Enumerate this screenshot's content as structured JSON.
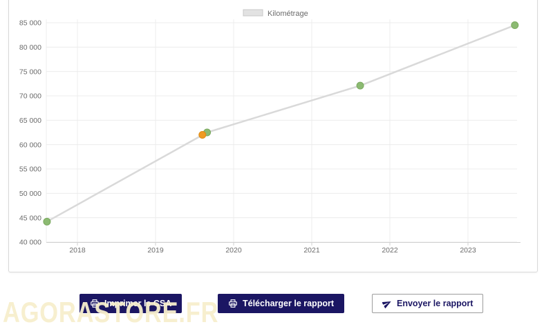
{
  "chart_data": {
    "type": "line",
    "title": "",
    "legend": [
      {
        "label": "Kilométrage",
        "swatch_color": "#e2e2e2",
        "swatch_border": "#c8c8c8"
      }
    ],
    "legend_position": "top-center",
    "grid": true,
    "x_ticks": [
      2018,
      2019,
      2020,
      2021,
      2022,
      2023
    ],
    "xlim": [
      2017.6,
      2023.63
    ],
    "ylim": [
      40000,
      85000
    ],
    "y_step": 5000,
    "y_tick_labels": [
      "40 000",
      "45 000",
      "50 000",
      "55 000",
      "60 000",
      "65 000",
      "70 000",
      "75 000",
      "80 000",
      "85 000"
    ],
    "series": [
      {
        "name": "Kilométrage",
        "type": "line",
        "line_color": "#d9d9d9",
        "point_color": "#8cba72",
        "point_stroke": "#7aa95f",
        "points": [
          [
            2017.61,
            44200
          ],
          [
            2019.66,
            62500
          ],
          [
            2021.62,
            72100
          ],
          [
            2023.6,
            84500
          ]
        ]
      },
      {
        "name": "",
        "type": "scatter",
        "point_color": "#ef9a22",
        "point_stroke": "#dd8a12",
        "points": [
          [
            2019.6,
            62000
          ]
        ]
      }
    ]
  },
  "buttons": [
    {
      "label": "Imprimer le CSA",
      "icon": "printer",
      "variant": "primary"
    },
    {
      "label": "Télécharger le rapport",
      "icon": "printer",
      "variant": "primary"
    },
    {
      "label": "Envoyer le rapport",
      "icon": "send",
      "variant": "outline"
    }
  ],
  "watermark": {
    "text": "AGORASTORE.FR"
  },
  "colors": {
    "primary_navy": "#1b1663",
    "axis_text": "#6b6b6b",
    "grid_line": "#ececec",
    "axis_line": "#cfcfcf",
    "card_border": "#d9d9d9",
    "watermark_tint": "#f8f0cf",
    "outline_border": "#9c9c9c"
  }
}
